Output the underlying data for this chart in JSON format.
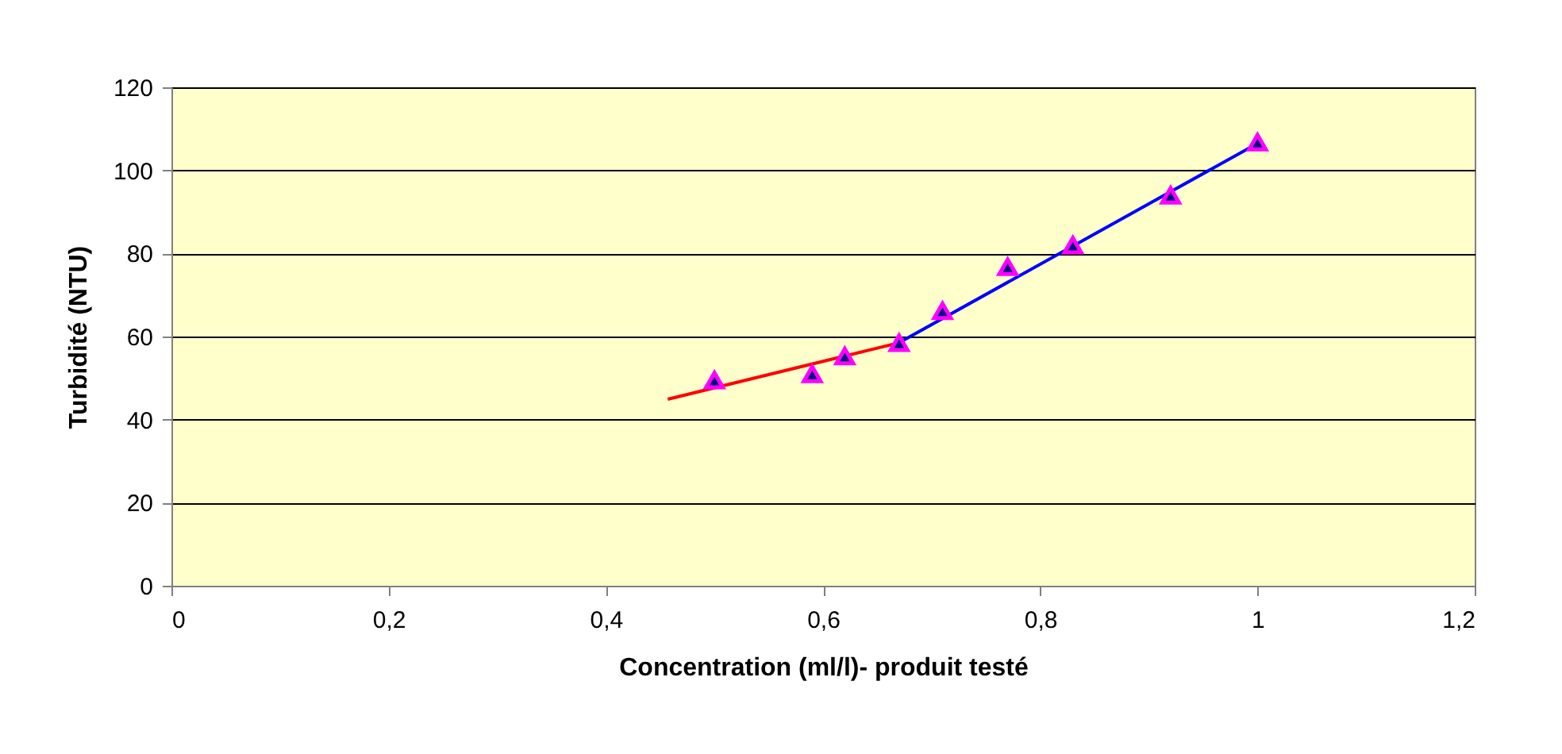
{
  "chart_data": {
    "type": "scatter",
    "xlabel": "Concentration (ml/l)- produit testé",
    "ylabel": "Turbidité (NTU)",
    "xlim": [
      0,
      1.2
    ],
    "ylim": [
      0,
      120
    ],
    "xticks": [
      0,
      {
        "value": 0.2,
        "label": "0,2"
      },
      {
        "value": 0.4,
        "label": "0,4"
      },
      {
        "value": 0.6,
        "label": "0,6"
      },
      {
        "value": 0.8,
        "label": "0,8"
      },
      1,
      {
        "value": 1.2,
        "label": "1,2"
      }
    ],
    "yticks": [
      0,
      20,
      40,
      60,
      80,
      100,
      120
    ],
    "grid": "y",
    "series": [
      {
        "type": "line",
        "color": "#ff0000",
        "x": [
          0.457,
          0.67
        ],
        "values": [
          44.9,
          58.5
        ],
        "marker": "none",
        "line_style": "solid"
      },
      {
        "type": "line",
        "color": "#0000ff",
        "x": [
          0.67,
          1.0
        ],
        "values": [
          58.5,
          106.5
        ],
        "marker": "none",
        "line_style": "solid"
      },
      {
        "color": "#000080",
        "x": [
          0.5,
          0.59,
          0.62,
          0.67,
          0.71,
          0.77,
          0.83,
          0.92,
          1.0
        ],
        "values": [
          49.5,
          51,
          55.3,
          58.5,
          66.2,
          76.8,
          82,
          94,
          106.8
        ],
        "marker": "triangle"
      }
    ]
  }
}
